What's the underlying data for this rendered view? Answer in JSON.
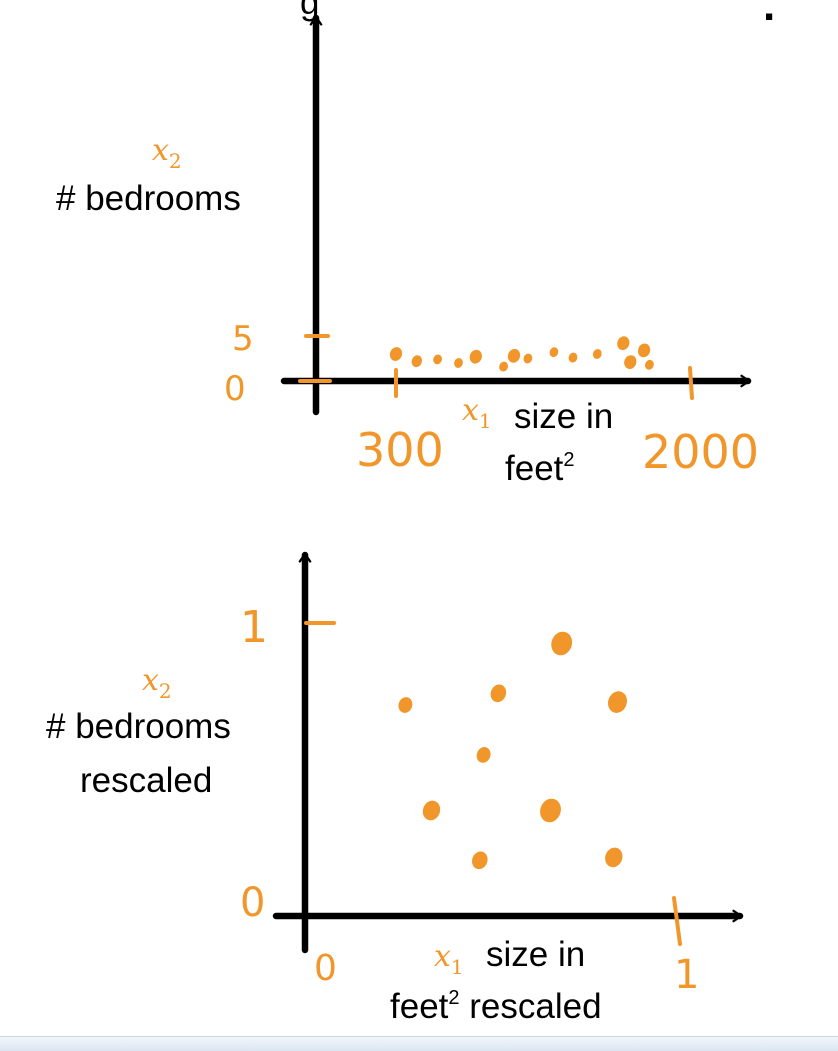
{
  "title_fragment": "g",
  "title_mark": ".",
  "colors": {
    "axis": "#000000",
    "points": "#f0962a"
  },
  "chart_data": [
    {
      "type": "scatter",
      "x_var": "x",
      "x_sub": "1",
      "x_label_line1": "size in",
      "x_label_line2": "feet",
      "x_label_sup": "2",
      "y_var": "x",
      "y_sub": "2",
      "y_label_line1": "# bedrooms",
      "x_ticks": [
        "300",
        "2000"
      ],
      "y_ticks": [
        "0",
        "5"
      ],
      "xlim": [
        300,
        2000
      ],
      "ylim": [
        0,
        5
      ],
      "points": [
        {
          "x": 300,
          "y": 3.0,
          "r": 7
        },
        {
          "x": 420,
          "y": 2.2,
          "r": 6
        },
        {
          "x": 540,
          "y": 2.4,
          "r": 5
        },
        {
          "x": 660,
          "y": 2.0,
          "r": 5
        },
        {
          "x": 760,
          "y": 2.7,
          "r": 7
        },
        {
          "x": 920,
          "y": 1.6,
          "r": 5
        },
        {
          "x": 980,
          "y": 2.8,
          "r": 7
        },
        {
          "x": 1060,
          "y": 2.5,
          "r": 5
        },
        {
          "x": 1210,
          "y": 3.2,
          "r": 5
        },
        {
          "x": 1320,
          "y": 2.6,
          "r": 5
        },
        {
          "x": 1460,
          "y": 3.0,
          "r": 5
        },
        {
          "x": 1610,
          "y": 4.2,
          "r": 7
        },
        {
          "x": 1650,
          "y": 2.1,
          "r": 7
        },
        {
          "x": 1730,
          "y": 3.4,
          "r": 7
        },
        {
          "x": 1760,
          "y": 1.8,
          "r": 5
        }
      ]
    },
    {
      "type": "scatter",
      "x_var": "x",
      "x_sub": "1",
      "x_label_line1": "size in",
      "x_label_line2": "feet",
      "x_label_sup": "2",
      "x_label_tail": "rescaled",
      "y_var": "x",
      "y_sub": "2",
      "y_label_line1": "# bedrooms",
      "y_label_line2": "rescaled",
      "x_ticks": [
        "0",
        "1"
      ],
      "y_ticks": [
        "0",
        "1"
      ],
      "xlim": [
        0,
        1
      ],
      "ylim": [
        0,
        1
      ],
      "points": [
        {
          "x": 0.27,
          "y": 0.72,
          "r": 8
        },
        {
          "x": 0.34,
          "y": 0.36,
          "r": 10
        },
        {
          "x": 0.47,
          "y": 0.19,
          "r": 9
        },
        {
          "x": 0.48,
          "y": 0.55,
          "r": 8
        },
        {
          "x": 0.52,
          "y": 0.76,
          "r": 9
        },
        {
          "x": 0.66,
          "y": 0.36,
          "r": 12
        },
        {
          "x": 0.69,
          "y": 0.93,
          "r": 12
        },
        {
          "x": 0.84,
          "y": 0.73,
          "r": 11
        },
        {
          "x": 0.83,
          "y": 0.2,
          "r": 10
        }
      ]
    }
  ]
}
